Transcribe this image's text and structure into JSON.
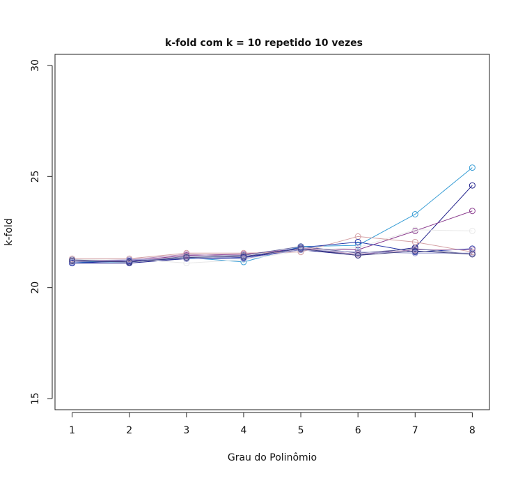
{
  "chart_data": {
    "type": "line",
    "title": "k-fold com k = 10 repetido 10 vezes",
    "xlabel": "Grau do Polinômio",
    "ylabel": "k-fold",
    "x": [
      1,
      2,
      3,
      4,
      5,
      6,
      7,
      8
    ],
    "xlim": [
      0.7,
      8.3
    ],
    "ylim": [
      14.5,
      30.5
    ],
    "yticks": [
      15,
      20,
      25,
      30
    ],
    "grid": false,
    "legend": "none",
    "marker": "open-circle",
    "series": [
      {
        "color": "#3b9fd6",
        "values": [
          21.15,
          21.15,
          21.35,
          21.15,
          21.85,
          21.9,
          23.3,
          25.4
        ]
      },
      {
        "color": "#1f1f8a",
        "values": [
          21.1,
          21.1,
          21.3,
          21.35,
          21.7,
          21.45,
          21.8,
          24.6
        ]
      },
      {
        "color": "#8b3d8f",
        "values": [
          21.2,
          21.2,
          21.45,
          21.5,
          21.75,
          21.7,
          22.55,
          23.45
        ]
      },
      {
        "color": "#e8e8e8",
        "values": [
          21.25,
          21.3,
          21.1,
          21.25,
          21.65,
          21.8,
          22.6,
          22.55
        ]
      },
      {
        "color": "#d4a0a4",
        "values": [
          21.3,
          21.3,
          21.55,
          21.55,
          21.6,
          22.3,
          22.05,
          21.6
        ]
      },
      {
        "color": "#2636a8",
        "values": [
          21.1,
          21.2,
          21.3,
          21.35,
          21.8,
          22.05,
          21.6,
          21.75
        ]
      },
      {
        "color": "#b58ab8",
        "values": [
          21.2,
          21.25,
          21.5,
          21.4,
          21.75,
          21.5,
          21.7,
          21.7
        ]
      },
      {
        "color": "#6a6aa0",
        "values": [
          21.25,
          21.15,
          21.4,
          21.45,
          21.85,
          21.55,
          21.75,
          21.5
        ]
      },
      {
        "color": "#9a9ad0",
        "values": [
          21.15,
          21.25,
          21.3,
          21.3,
          21.7,
          21.6,
          21.55,
          21.55
        ]
      },
      {
        "color": "#404080",
        "values": [
          21.2,
          21.15,
          21.35,
          21.4,
          21.75,
          21.45,
          21.65,
          21.5
        ]
      }
    ]
  }
}
